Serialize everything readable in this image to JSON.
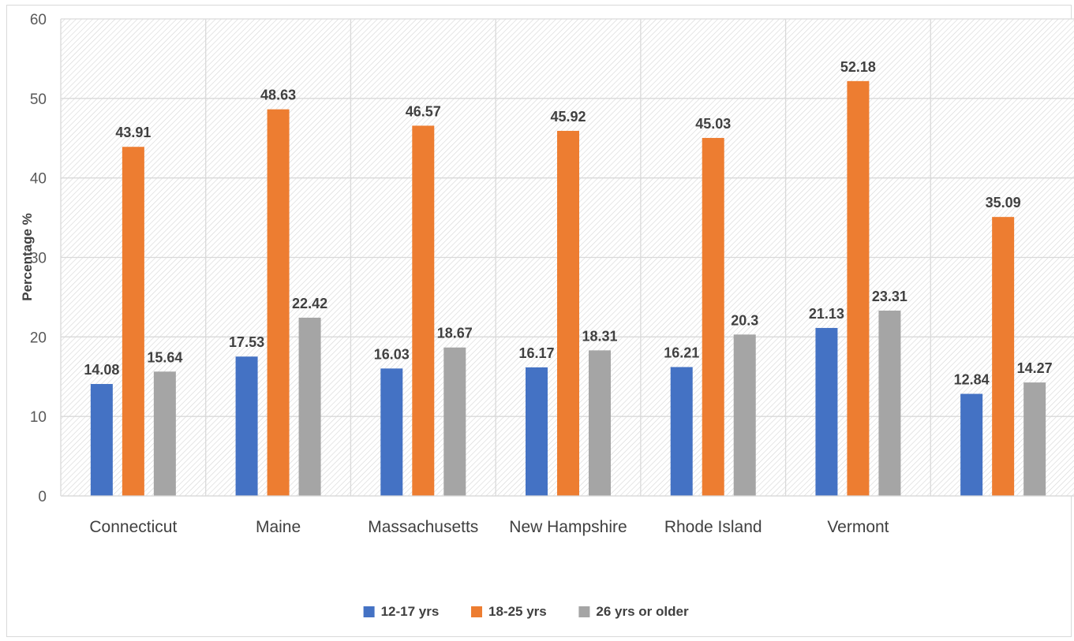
{
  "chart_data": {
    "type": "bar",
    "title": "",
    "xlabel": "",
    "ylabel": "Percentage %",
    "ylim": [
      0,
      60
    ],
    "yticks": [
      0,
      10,
      20,
      30,
      40,
      50,
      60
    ],
    "grid": true,
    "legend_position": "bottom",
    "categories": [
      "Connecticut",
      "Maine",
      "Massachusetts",
      "New Hampshire",
      "Rhode Island",
      "Vermont",
      ""
    ],
    "series": [
      {
        "name": "12-17 yrs",
        "color": "#4472C4",
        "values": [
          14.08,
          17.53,
          16.03,
          16.17,
          16.21,
          21.13,
          12.84
        ]
      },
      {
        "name": "18-25 yrs",
        "color": "#ED7D31",
        "values": [
          43.91,
          48.63,
          46.57,
          45.92,
          45.03,
          52.18,
          35.09
        ]
      },
      {
        "name": "26 yrs or older",
        "color": "#A5A5A5",
        "values": [
          15.64,
          22.42,
          18.67,
          18.31,
          20.3,
          23.31,
          14.27
        ]
      }
    ]
  }
}
